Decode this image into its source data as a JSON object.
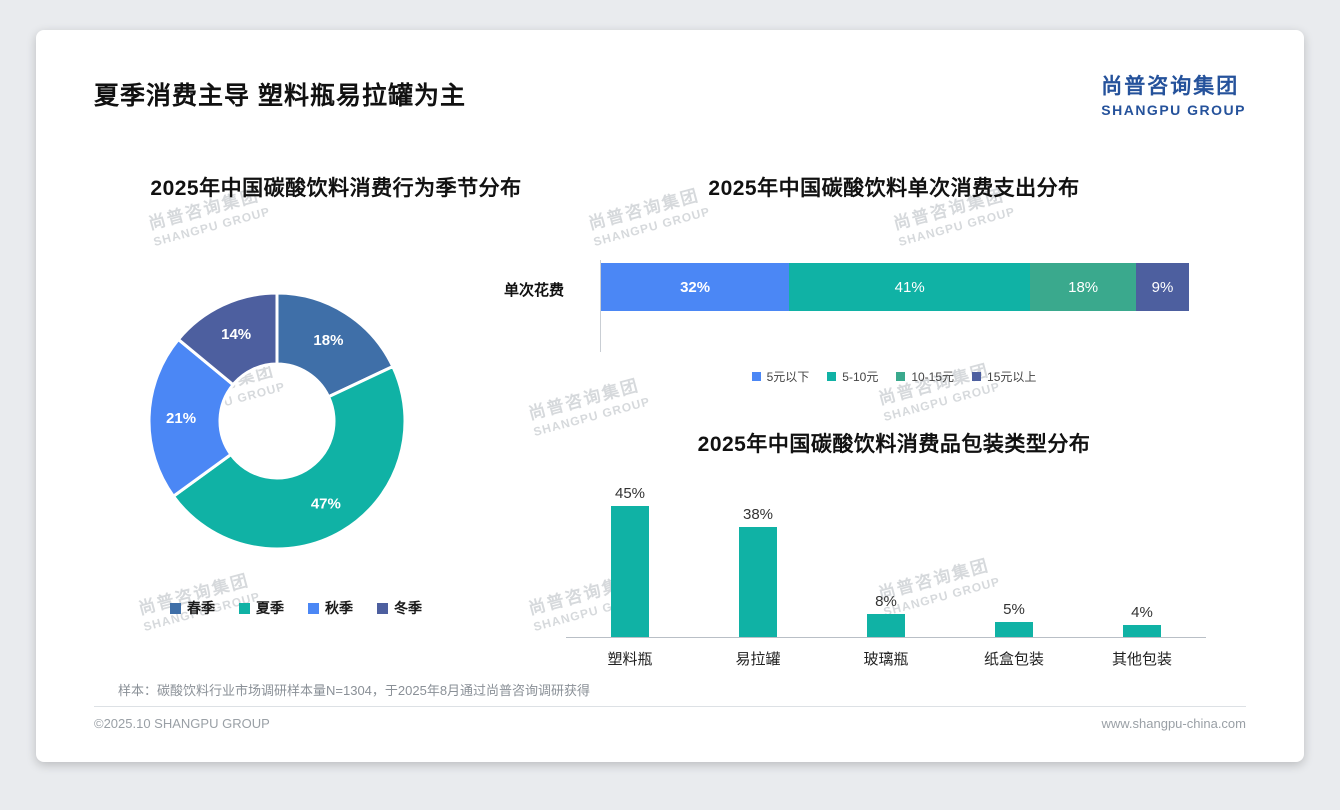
{
  "page": {
    "title": "夏季消费主导 塑料瓶易拉罐为主",
    "logo": {
      "cn": "尚普咨询集团",
      "en": "SHANGPU GROUP"
    },
    "watermark": {
      "cn": "尚普咨询集团",
      "en": "SHANGPU GROUP"
    },
    "footnote": "样本：碳酸饮料行业市场调研样本量N=1304，于2025年8月通过尚普咨询调研获得",
    "footer": {
      "left": "©2025.10 SHANGPU GROUP",
      "right": "www.shangpu-china.com"
    }
  },
  "chart_data": [
    {
      "id": "season_donut",
      "type": "pie",
      "donut": true,
      "title": "2025年中国碳酸饮料消费行为季节分布",
      "categories": [
        "春季",
        "夏季",
        "秋季",
        "冬季"
      ],
      "values": [
        18,
        47,
        21,
        14
      ],
      "labels": [
        "18%",
        "47%",
        "21%",
        "14%"
      ],
      "colors": [
        "#3f6fa8",
        "#10b2a5",
        "#4b87f5",
        "#4d5f9f"
      ],
      "legend_position": "bottom",
      "unit": "%"
    },
    {
      "id": "spend_stacked_bar",
      "type": "bar",
      "subtype": "horizontal-stacked",
      "title": "2025年中国碳酸饮料单次消费支出分布",
      "row_label": "单次花费",
      "categories": [
        "5元以下",
        "5-10元",
        "10-15元",
        "15元以上"
      ],
      "values": [
        32,
        41,
        18,
        9
      ],
      "labels": [
        "32%",
        "41%",
        "18%",
        "9%"
      ],
      "colors": [
        "#4b87f5",
        "#10b2a5",
        "#3aa98d",
        "#4d5f9f"
      ],
      "xlim": [
        0,
        100
      ],
      "legend_position": "bottom",
      "unit": "%"
    },
    {
      "id": "packaging_bar",
      "type": "bar",
      "title": "2025年中国碳酸饮料消费品包装类型分布",
      "categories": [
        "塑料瓶",
        "易拉罐",
        "玻璃瓶",
        "纸盒包装",
        "其他包装"
      ],
      "values": [
        45,
        38,
        8,
        5,
        4
      ],
      "labels": [
        "45%",
        "38%",
        "8%",
        "5%",
        "4%"
      ],
      "bar_color": "#10b2a5",
      "ylim": [
        0,
        50
      ],
      "grid": false,
      "unit": "%"
    }
  ]
}
